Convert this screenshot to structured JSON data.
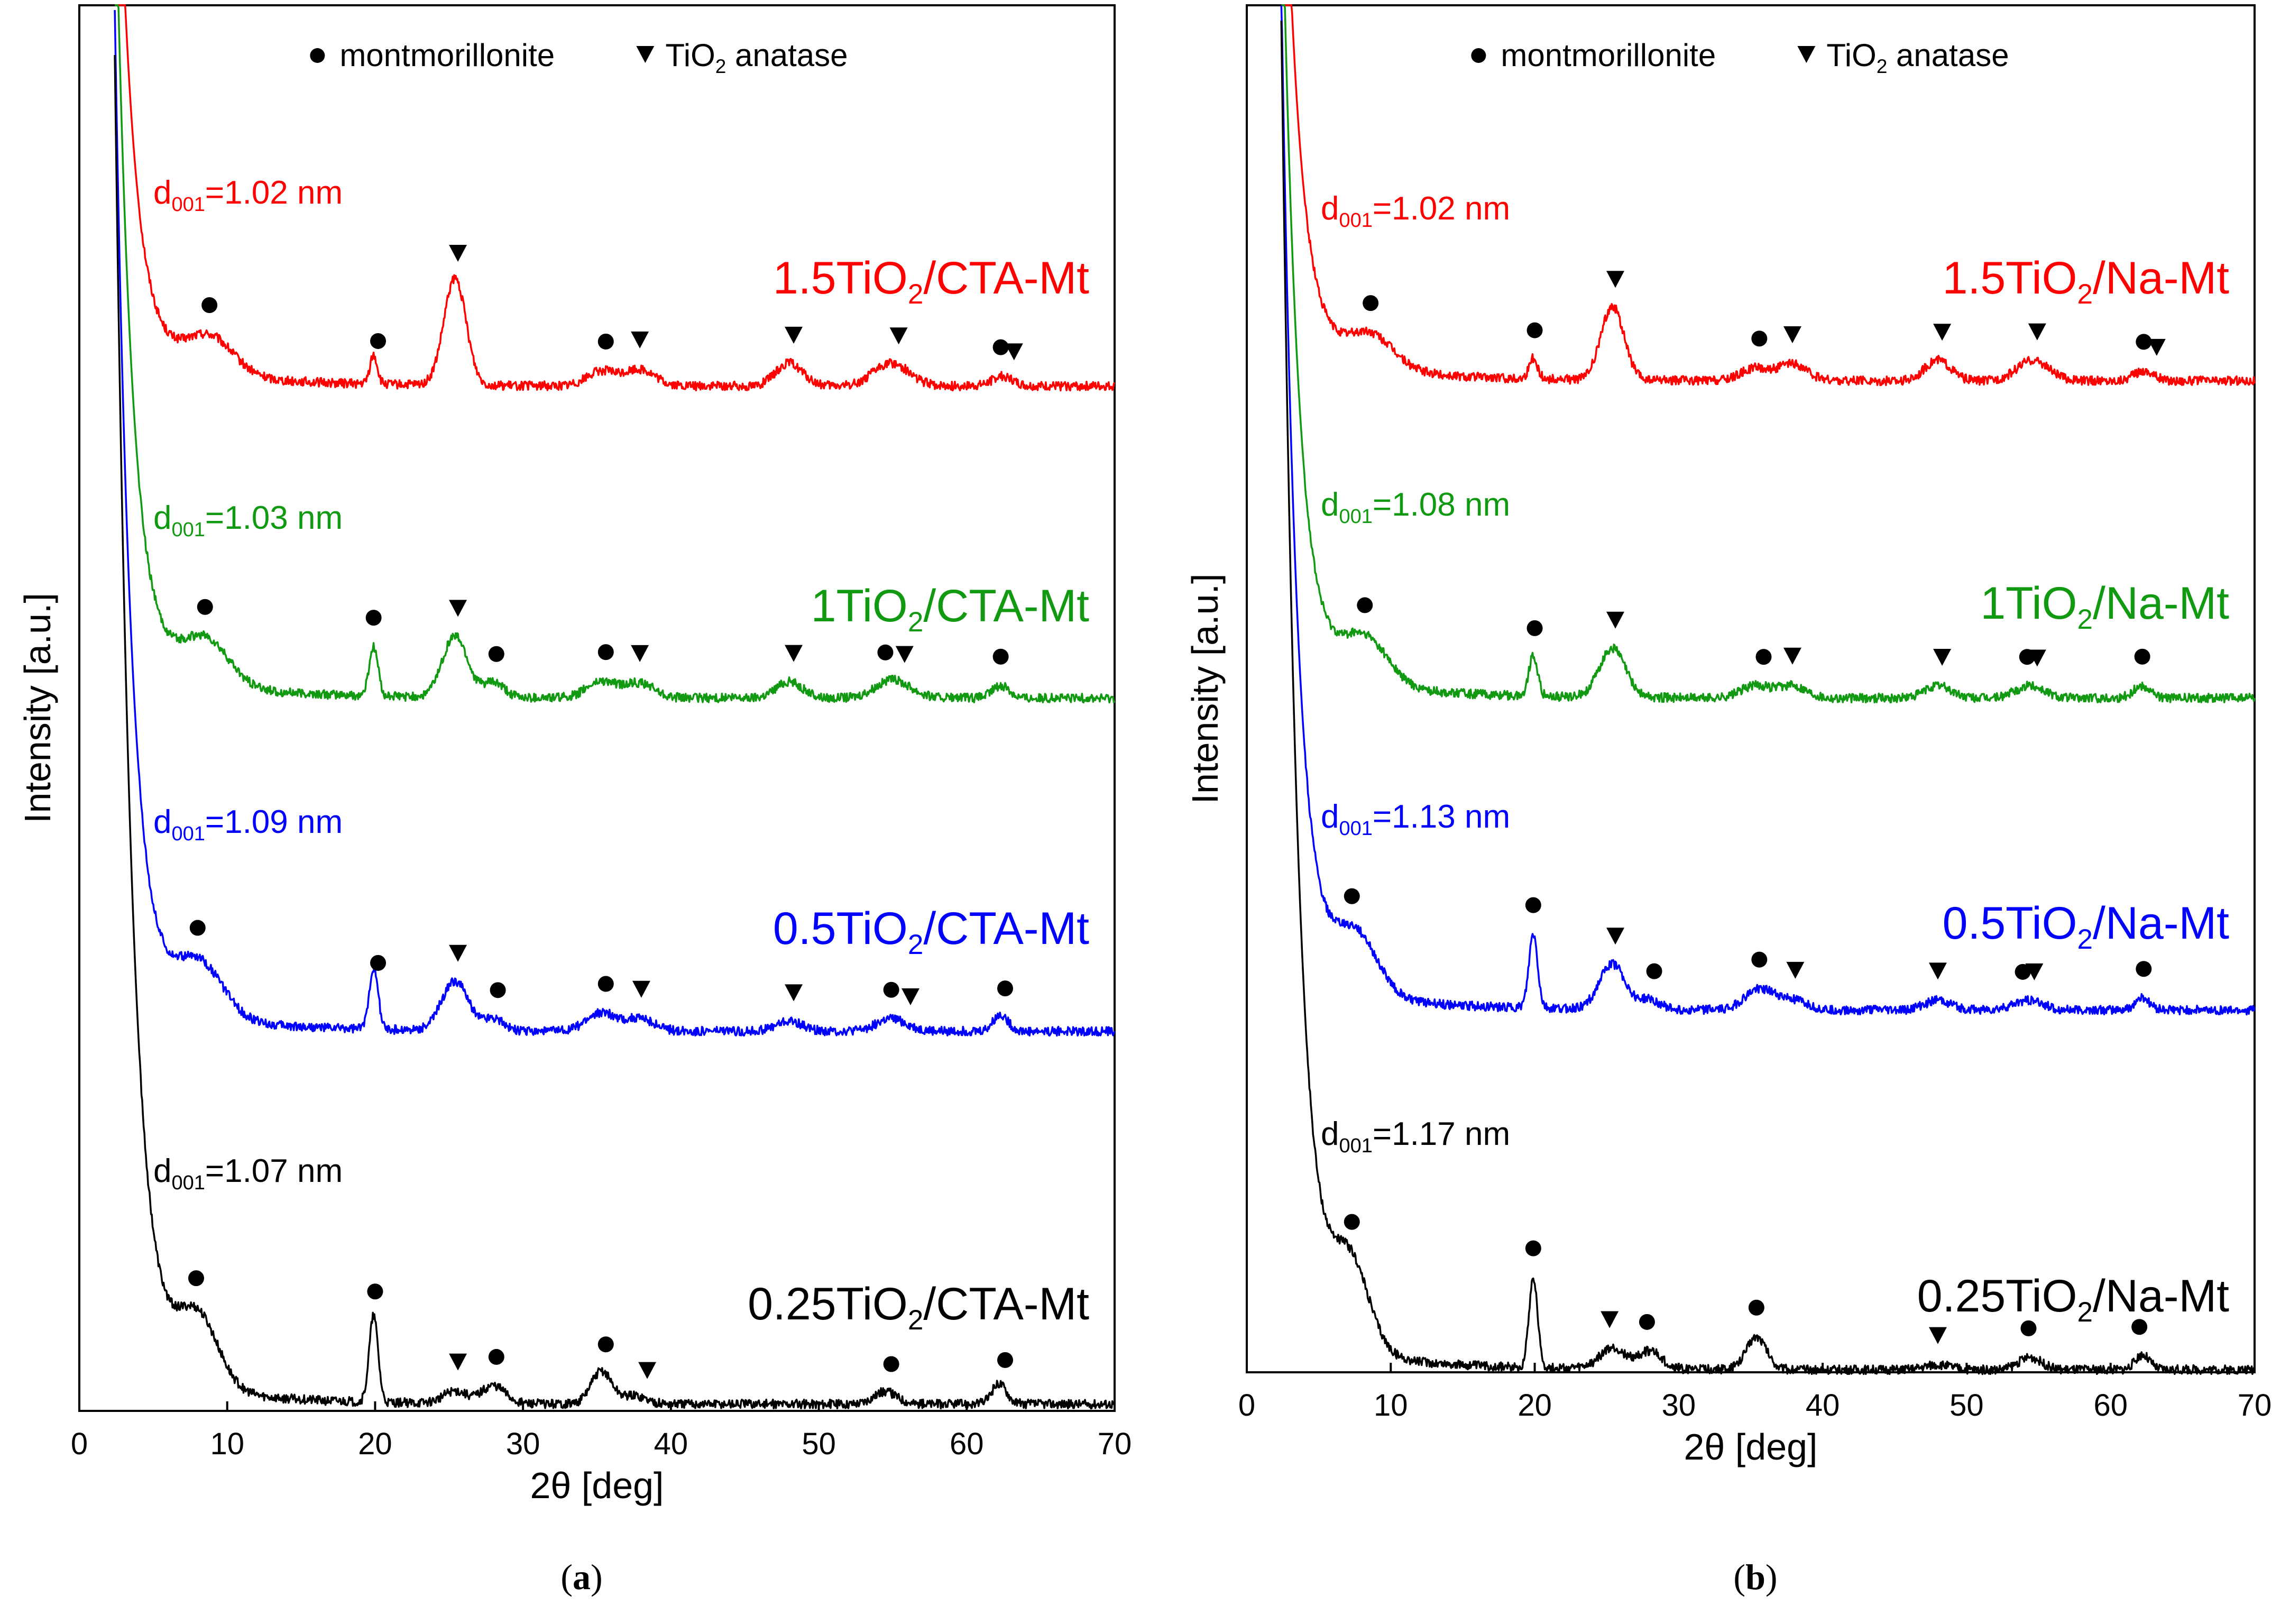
{
  "figure": {
    "panels": [
      {
        "caption": "(a)",
        "caption_letter": "a",
        "legend": {
          "montmorillonite": "montmorillonite",
          "tio2_anatase_prefix": "TiO",
          "tio2_anatase_sub": "2",
          "tio2_anatase_suffix": " anatase"
        }
      },
      {
        "caption": "(b)",
        "caption_letter": "b",
        "legend": {
          "montmorillonite": "montmorillonite",
          "tio2_anatase_prefix": "TiO",
          "tio2_anatase_sub": "2",
          "tio2_anatase_suffix": " anatase"
        }
      }
    ]
  },
  "colors": {
    "red": "#ff0000",
    "green": "#119911",
    "blue": "#0000ff",
    "black": "#000000"
  },
  "chart_data": [
    {
      "type": "line",
      "panel": "a",
      "xlabel": "2θ [deg]",
      "ylabel": "Intensity [a.u.]",
      "xlim": [
        0,
        70
      ],
      "xticks": [
        0,
        10,
        20,
        30,
        40,
        50,
        60,
        70
      ],
      "y_ticks_shown": false,
      "legend_markers": {
        "circle": "montmorillonite",
        "triangle": "TiO2 anatase"
      },
      "series": [
        {
          "name": "1.5TiO2/CTA-Mt",
          "label_prefix": "1.5TiO",
          "label_sub": "2",
          "label_suffix": "/CTA-Mt",
          "color": "red",
          "d001_prefix": "d",
          "d001_sub": "001",
          "d001_suffix": "=1.02 nm",
          "d001": 1.02,
          "baseline": 7.1,
          "steep_scale": 8,
          "steep_decay": 0.9,
          "peaks": [
            {
              "x": 8.8,
              "h": 0.45,
              "w": 1.6
            },
            {
              "x": 19.9,
              "h": 0.35,
              "w": 0.25
            },
            {
              "x": 25.4,
              "h": 1.3,
              "w": 0.75
            },
            {
              "x": 35.3,
              "h": 0.18,
              "w": 1.0
            },
            {
              "x": 37.9,
              "h": 0.2,
              "w": 1.0
            },
            {
              "x": 48.0,
              "h": 0.28,
              "w": 0.9
            },
            {
              "x": 54.9,
              "h": 0.28,
              "w": 1.2
            },
            {
              "x": 62.4,
              "h": 0.12,
              "w": 0.7
            }
          ],
          "markers": [
            {
              "x": 8.8,
              "type": "circle"
            },
            {
              "x": 20.2,
              "type": "circle"
            },
            {
              "x": 25.6,
              "type": "triangle"
            },
            {
              "x": 35.6,
              "type": "circle"
            },
            {
              "x": 37.9,
              "type": "triangle"
            },
            {
              "x": 48.3,
              "type": "triangle"
            },
            {
              "x": 55.4,
              "type": "triangle"
            },
            {
              "x": 62.3,
              "type": "circle"
            },
            {
              "x": 63.2,
              "type": "triangle"
            }
          ]
        },
        {
          "name": "1TiO2/CTA-Mt",
          "label_prefix": "1TiO",
          "label_sub": "2",
          "label_suffix": "/CTA-Mt",
          "color": "green",
          "d001_prefix": "d",
          "d001_sub": "001",
          "d001_suffix": "=1.03 nm",
          "d001": 1.03,
          "baseline": 5.0,
          "steep_scale": 10,
          "steep_decay": 0.9,
          "peaks": [
            {
              "x": 8.5,
              "h": 0.55,
              "w": 1.6
            },
            {
              "x": 19.9,
              "h": 0.6,
              "w": 0.3
            },
            {
              "x": 25.4,
              "h": 0.75,
              "w": 0.85
            },
            {
              "x": 28.0,
              "h": 0.18,
              "w": 0.7
            },
            {
              "x": 35.3,
              "h": 0.2,
              "w": 1.0
            },
            {
              "x": 37.9,
              "h": 0.18,
              "w": 1.0
            },
            {
              "x": 48.0,
              "h": 0.2,
              "w": 0.9
            },
            {
              "x": 55.0,
              "h": 0.22,
              "w": 1.2
            },
            {
              "x": 62.3,
              "h": 0.15,
              "w": 0.6
            }
          ],
          "markers": [
            {
              "x": 8.5,
              "type": "circle"
            },
            {
              "x": 19.9,
              "type": "circle"
            },
            {
              "x": 25.6,
              "type": "triangle"
            },
            {
              "x": 28.2,
              "type": "circle"
            },
            {
              "x": 35.6,
              "type": "circle"
            },
            {
              "x": 37.9,
              "type": "triangle"
            },
            {
              "x": 48.3,
              "type": "triangle"
            },
            {
              "x": 54.5,
              "type": "circle"
            },
            {
              "x": 55.8,
              "type": "triangle"
            },
            {
              "x": 62.3,
              "type": "circle"
            }
          ]
        },
        {
          "name": "0.5TiO2/CTA-Mt",
          "label_prefix": "0.5TiO",
          "label_sub": "2",
          "label_suffix": "/CTA-Mt",
          "color": "blue",
          "d001_prefix": "d",
          "d001_sub": "001",
          "d001_suffix": "=1.09 nm",
          "d001": 1.09,
          "baseline": 2.6,
          "steep_scale": 12,
          "steep_decay": 0.9,
          "peaks": [
            {
              "x": 8.1,
              "h": 0.65,
              "w": 1.6
            },
            {
              "x": 19.9,
              "h": 0.75,
              "w": 0.3
            },
            {
              "x": 25.4,
              "h": 0.6,
              "w": 0.9
            },
            {
              "x": 28.0,
              "h": 0.15,
              "w": 0.7
            },
            {
              "x": 35.3,
              "h": 0.22,
              "w": 1.0
            },
            {
              "x": 37.9,
              "h": 0.15,
              "w": 1.0
            },
            {
              "x": 48.0,
              "h": 0.12,
              "w": 0.9
            },
            {
              "x": 54.9,
              "h": 0.15,
              "w": 1.0
            },
            {
              "x": 62.3,
              "h": 0.2,
              "w": 0.5
            }
          ],
          "markers": [
            {
              "x": 8.0,
              "type": "circle"
            },
            {
              "x": 20.2,
              "type": "circle"
            },
            {
              "x": 25.6,
              "type": "triangle"
            },
            {
              "x": 28.3,
              "type": "circle"
            },
            {
              "x": 35.6,
              "type": "circle"
            },
            {
              "x": 38.0,
              "type": "triangle"
            },
            {
              "x": 48.3,
              "type": "triangle"
            },
            {
              "x": 54.9,
              "type": "circle"
            },
            {
              "x": 56.2,
              "type": "triangle"
            },
            {
              "x": 62.6,
              "type": "circle"
            }
          ]
        },
        {
          "name": "0.25TiO2/CTA-Mt",
          "label_prefix": "0.25TiO",
          "label_sub": "2",
          "label_suffix": "/CTA-Mt",
          "color": "black",
          "d001_prefix": "d",
          "d001_sub": "001",
          "d001_suffix": "=1.07 nm",
          "d001": 1.07,
          "baseline": 0,
          "steep_scale": 16,
          "steep_decay": 0.85,
          "peaks": [
            {
              "x": 8.0,
              "h": 0.85,
              "w": 1.4
            },
            {
              "x": 19.9,
              "h": 1.05,
              "w": 0.3
            },
            {
              "x": 25.4,
              "h": 0.15,
              "w": 0.8
            },
            {
              "x": 28.0,
              "h": 0.22,
              "w": 0.8
            },
            {
              "x": 35.3,
              "h": 0.4,
              "w": 0.7
            },
            {
              "x": 37.5,
              "h": 0.1,
              "w": 0.8
            },
            {
              "x": 54.5,
              "h": 0.15,
              "w": 0.8
            },
            {
              "x": 62.2,
              "h": 0.25,
              "w": 0.5
            }
          ],
          "markers": [
            {
              "x": 7.9,
              "type": "circle"
            },
            {
              "x": 20.0,
              "type": "circle"
            },
            {
              "x": 25.6,
              "type": "triangle"
            },
            {
              "x": 28.2,
              "type": "circle"
            },
            {
              "x": 35.6,
              "type": "circle"
            },
            {
              "x": 38.4,
              "type": "triangle"
            },
            {
              "x": 54.9,
              "type": "circle"
            },
            {
              "x": 62.6,
              "type": "circle"
            }
          ]
        }
      ]
    },
    {
      "type": "line",
      "panel": "b",
      "xlabel": "2θ [deg]",
      "ylabel": "Intensity [a.u.]",
      "xlim": [
        0,
        70
      ],
      "xticks": [
        0,
        10,
        20,
        30,
        40,
        50,
        60,
        70
      ],
      "y_ticks_shown": false,
      "legend_markers": {
        "circle": "montmorillonite",
        "triangle": "TiO2 anatase"
      },
      "series": [
        {
          "name": "1.5TiO2/Na-Mt",
          "label_prefix": "1.5TiO",
          "label_sub": "2",
          "label_suffix": "/Na-Mt",
          "color": "red",
          "d001_prefix": "d",
          "d001_sub": "001",
          "d001_suffix": "=1.02 nm",
          "d001": 1.02,
          "baseline": 7.1,
          "steep_scale": 8,
          "steep_decay": 0.9,
          "peaks": [
            {
              "x": 8.6,
              "h": 0.4,
              "w": 1.6
            },
            {
              "x": 19.9,
              "h": 0.25,
              "w": 0.3
            },
            {
              "x": 25.4,
              "h": 0.9,
              "w": 0.8
            },
            {
              "x": 35.3,
              "h": 0.15,
              "w": 1.0
            },
            {
              "x": 37.9,
              "h": 0.2,
              "w": 1.0
            },
            {
              "x": 48.0,
              "h": 0.25,
              "w": 0.9
            },
            {
              "x": 54.6,
              "h": 0.25,
              "w": 1.1
            },
            {
              "x": 62.3,
              "h": 0.12,
              "w": 0.7
            }
          ],
          "markers": [
            {
              "x": 8.6,
              "type": "circle"
            },
            {
              "x": 20.0,
              "type": "circle"
            },
            {
              "x": 25.6,
              "type": "triangle"
            },
            {
              "x": 35.6,
              "type": "circle"
            },
            {
              "x": 37.9,
              "type": "triangle"
            },
            {
              "x": 48.3,
              "type": "triangle"
            },
            {
              "x": 54.9,
              "type": "triangle"
            },
            {
              "x": 62.3,
              "type": "circle"
            },
            {
              "x": 63.2,
              "type": "triangle"
            }
          ]
        },
        {
          "name": "1TiO2/Na-Mt",
          "label_prefix": "1TiO",
          "label_sub": "2",
          "label_suffix": "/Na-Mt",
          "color": "green",
          "d001_prefix": "d",
          "d001_sub": "001",
          "d001_suffix": "=1.08 nm",
          "d001": 1.08,
          "baseline": 5.0,
          "steep_scale": 10,
          "steep_decay": 0.9,
          "peaks": [
            {
              "x": 8.2,
              "h": 0.55,
              "w": 1.6
            },
            {
              "x": 19.9,
              "h": 0.5,
              "w": 0.3
            },
            {
              "x": 25.4,
              "h": 0.6,
              "w": 0.9
            },
            {
              "x": 35.3,
              "h": 0.15,
              "w": 1.0
            },
            {
              "x": 37.9,
              "h": 0.15,
              "w": 1.0
            },
            {
              "x": 48.0,
              "h": 0.15,
              "w": 0.9
            },
            {
              "x": 54.4,
              "h": 0.15,
              "w": 1.0
            },
            {
              "x": 62.2,
              "h": 0.15,
              "w": 0.6
            }
          ],
          "markers": [
            {
              "x": 8.2,
              "type": "circle"
            },
            {
              "x": 20.0,
              "type": "circle"
            },
            {
              "x": 25.6,
              "type": "triangle"
            },
            {
              "x": 35.9,
              "type": "circle"
            },
            {
              "x": 37.9,
              "type": "triangle"
            },
            {
              "x": 48.3,
              "type": "triangle"
            },
            {
              "x": 54.2,
              "type": "circle"
            },
            {
              "x": 54.9,
              "type": "triangle"
            },
            {
              "x": 62.2,
              "type": "circle"
            }
          ]
        },
        {
          "name": "0.5TiO2/Na-Mt",
          "label_prefix": "0.5TiO",
          "label_sub": "2",
          "label_suffix": "/Na-Mt",
          "color": "blue",
          "d001_prefix": "d",
          "d001_sub": "001",
          "d001_suffix": "=1.13 nm",
          "d001": 1.13,
          "baseline": 2.6,
          "steep_scale": 12,
          "steep_decay": 0.9,
          "peaks": [
            {
              "x": 7.6,
              "h": 0.7,
              "w": 1.5
            },
            {
              "x": 19.9,
              "h": 0.9,
              "w": 0.3
            },
            {
              "x": 25.4,
              "h": 0.55,
              "w": 0.9
            },
            {
              "x": 28.0,
              "h": 0.12,
              "w": 0.7
            },
            {
              "x": 35.6,
              "h": 0.25,
              "w": 1.0
            },
            {
              "x": 37.9,
              "h": 0.12,
              "w": 1.0
            },
            {
              "x": 48.0,
              "h": 0.12,
              "w": 0.9
            },
            {
              "x": 54.3,
              "h": 0.12,
              "w": 1.0
            },
            {
              "x": 62.2,
              "h": 0.15,
              "w": 0.5
            }
          ],
          "markers": [
            {
              "x": 7.3,
              "type": "circle"
            },
            {
              "x": 19.9,
              "type": "circle"
            },
            {
              "x": 25.6,
              "type": "triangle"
            },
            {
              "x": 28.3,
              "type": "circle"
            },
            {
              "x": 35.6,
              "type": "circle"
            },
            {
              "x": 38.1,
              "type": "triangle"
            },
            {
              "x": 48.0,
              "type": "triangle"
            },
            {
              "x": 53.9,
              "type": "circle"
            },
            {
              "x": 54.7,
              "type": "triangle"
            },
            {
              "x": 62.3,
              "type": "circle"
            }
          ]
        },
        {
          "name": "0.25TiO2/Na-Mt",
          "label_prefix": "0.25TiO",
          "label_sub": "2",
          "label_suffix": "/Na-Mt",
          "color": "black",
          "d001_prefix": "d",
          "d001_sub": "001",
          "d001_suffix": "=1.17 nm",
          "d001": 1.17,
          "baseline": 0,
          "steep_scale": 16,
          "steep_decay": 0.85,
          "peaks": [
            {
              "x": 7.2,
              "h": 1.0,
              "w": 1.3
            },
            {
              "x": 19.9,
              "h": 1.1,
              "w": 0.3
            },
            {
              "x": 25.4,
              "h": 0.25,
              "w": 0.9
            },
            {
              "x": 28.0,
              "h": 0.22,
              "w": 0.8
            },
            {
              "x": 35.4,
              "h": 0.4,
              "w": 0.7
            },
            {
              "x": 48.0,
              "h": 0.06,
              "w": 0.9
            },
            {
              "x": 54.4,
              "h": 0.15,
              "w": 0.8
            },
            {
              "x": 62.2,
              "h": 0.18,
              "w": 0.5
            }
          ],
          "markers": [
            {
              "x": 7.3,
              "type": "circle"
            },
            {
              "x": 19.9,
              "type": "circle"
            },
            {
              "x": 25.2,
              "type": "triangle"
            },
            {
              "x": 27.8,
              "type": "circle"
            },
            {
              "x": 35.4,
              "type": "circle"
            },
            {
              "x": 48.0,
              "type": "triangle"
            },
            {
              "x": 54.3,
              "type": "circle"
            },
            {
              "x": 62.0,
              "type": "circle"
            }
          ]
        }
      ]
    }
  ]
}
